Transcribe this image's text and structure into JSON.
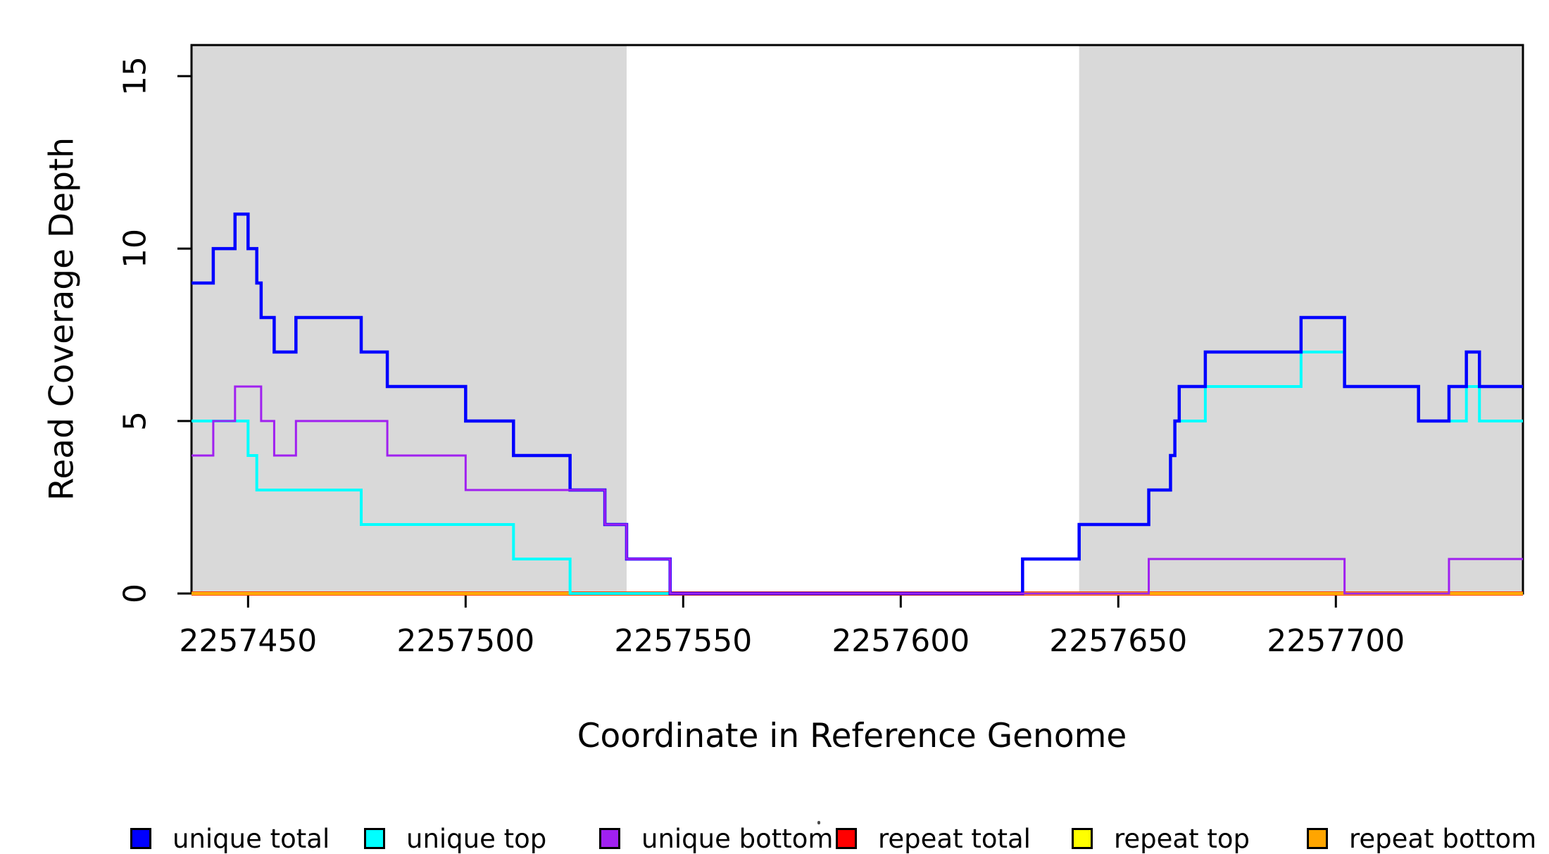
{
  "chart_data": {
    "type": "line",
    "subtype": "step",
    "title": "",
    "xlabel": "Coordinate in Reference Genome",
    "ylabel": "Read Coverage Depth",
    "xlim": [
      2257437,
      2257743
    ],
    "ylim": [
      0,
      15.9
    ],
    "x_ticks": [
      2257450,
      2257500,
      2257550,
      2257600,
      2257650,
      2257700
    ],
    "y_ticks": [
      0,
      5,
      10,
      15
    ],
    "grid": false,
    "legend_position": "bottom",
    "shaded_regions": {
      "color": "#d9d9d9",
      "regions": [
        [
          2257437,
          2257537
        ],
        [
          2257641,
          2257743
        ]
      ]
    },
    "series": [
      {
        "name": "repeat total",
        "color": "#ff0000",
        "line_width": 6,
        "steps": [
          [
            2257437,
            0
          ],
          [
            2257743,
            0
          ]
        ]
      },
      {
        "name": "repeat top",
        "color": "#ffff00",
        "line_width": 4.5,
        "steps": [
          [
            2257437,
            0
          ],
          [
            2257743,
            0
          ]
        ]
      },
      {
        "name": "repeat bottom",
        "color": "#ffa500",
        "line_width": 3.5,
        "steps": [
          [
            2257437,
            0
          ],
          [
            2257743,
            0
          ]
        ]
      },
      {
        "name": "unique top",
        "color": "#00ffff",
        "line_width": 4,
        "steps": [
          [
            2257437,
            5
          ],
          [
            2257450,
            4
          ],
          [
            2257452,
            3
          ],
          [
            2257476,
            2
          ],
          [
            2257511,
            1
          ],
          [
            2257524,
            0
          ],
          [
            2257628,
            1
          ],
          [
            2257641,
            2
          ],
          [
            2257657,
            3
          ],
          [
            2257662,
            4
          ],
          [
            2257663,
            5
          ],
          [
            2257670,
            6
          ],
          [
            2257692,
            7
          ],
          [
            2257702,
            6
          ],
          [
            2257719,
            5
          ],
          [
            2257730,
            6
          ],
          [
            2257733,
            5
          ],
          [
            2257743,
            5
          ]
        ]
      },
      {
        "name": "unique total",
        "color": "#0000ff",
        "line_width": 4.5,
        "steps": [
          [
            2257437,
            9
          ],
          [
            2257442,
            10
          ],
          [
            2257447,
            11
          ],
          [
            2257450,
            10
          ],
          [
            2257452,
            9
          ],
          [
            2257453,
            8
          ],
          [
            2257456,
            7
          ],
          [
            2257461,
            8
          ],
          [
            2257476,
            7
          ],
          [
            2257482,
            6
          ],
          [
            2257500,
            5
          ],
          [
            2257511,
            4
          ],
          [
            2257524,
            3
          ],
          [
            2257532,
            2
          ],
          [
            2257537,
            1
          ],
          [
            2257547,
            0
          ],
          [
            2257628,
            1
          ],
          [
            2257641,
            2
          ],
          [
            2257657,
            3
          ],
          [
            2257662,
            4
          ],
          [
            2257663,
            5
          ],
          [
            2257664,
            6
          ],
          [
            2257670,
            7
          ],
          [
            2257692,
            8
          ],
          [
            2257702,
            6
          ],
          [
            2257719,
            5
          ],
          [
            2257726,
            6
          ],
          [
            2257730,
            7
          ],
          [
            2257733,
            6
          ],
          [
            2257743,
            6
          ]
        ]
      },
      {
        "name": "unique bottom",
        "color": "#a020f0",
        "line_width": 3,
        "steps": [
          [
            2257437,
            4
          ],
          [
            2257442,
            5
          ],
          [
            2257447,
            6
          ],
          [
            2257453,
            5
          ],
          [
            2257456,
            4
          ],
          [
            2257461,
            5
          ],
          [
            2257482,
            4
          ],
          [
            2257500,
            3
          ],
          [
            2257532,
            2
          ],
          [
            2257537,
            1
          ],
          [
            2257547,
            0
          ],
          [
            2257657,
            1
          ],
          [
            2257702,
            0
          ],
          [
            2257726,
            1
          ],
          [
            2257743,
            1
          ]
        ]
      }
    ],
    "legend": [
      {
        "label": "unique total",
        "color": "#0000ff"
      },
      {
        "label": "unique top",
        "color": "#00ffff"
      },
      {
        "label": "unique bottom",
        "color": "#a020f0"
      },
      {
        "label": "repeat total",
        "color": "#ff0000"
      },
      {
        "label": "repeat top",
        "color": "#ffff00"
      },
      {
        "label": "repeat bottom",
        "color": "#ffa500"
      }
    ]
  },
  "layout_colors": {
    "axis": "#000000",
    "background": "#ffffff"
  }
}
